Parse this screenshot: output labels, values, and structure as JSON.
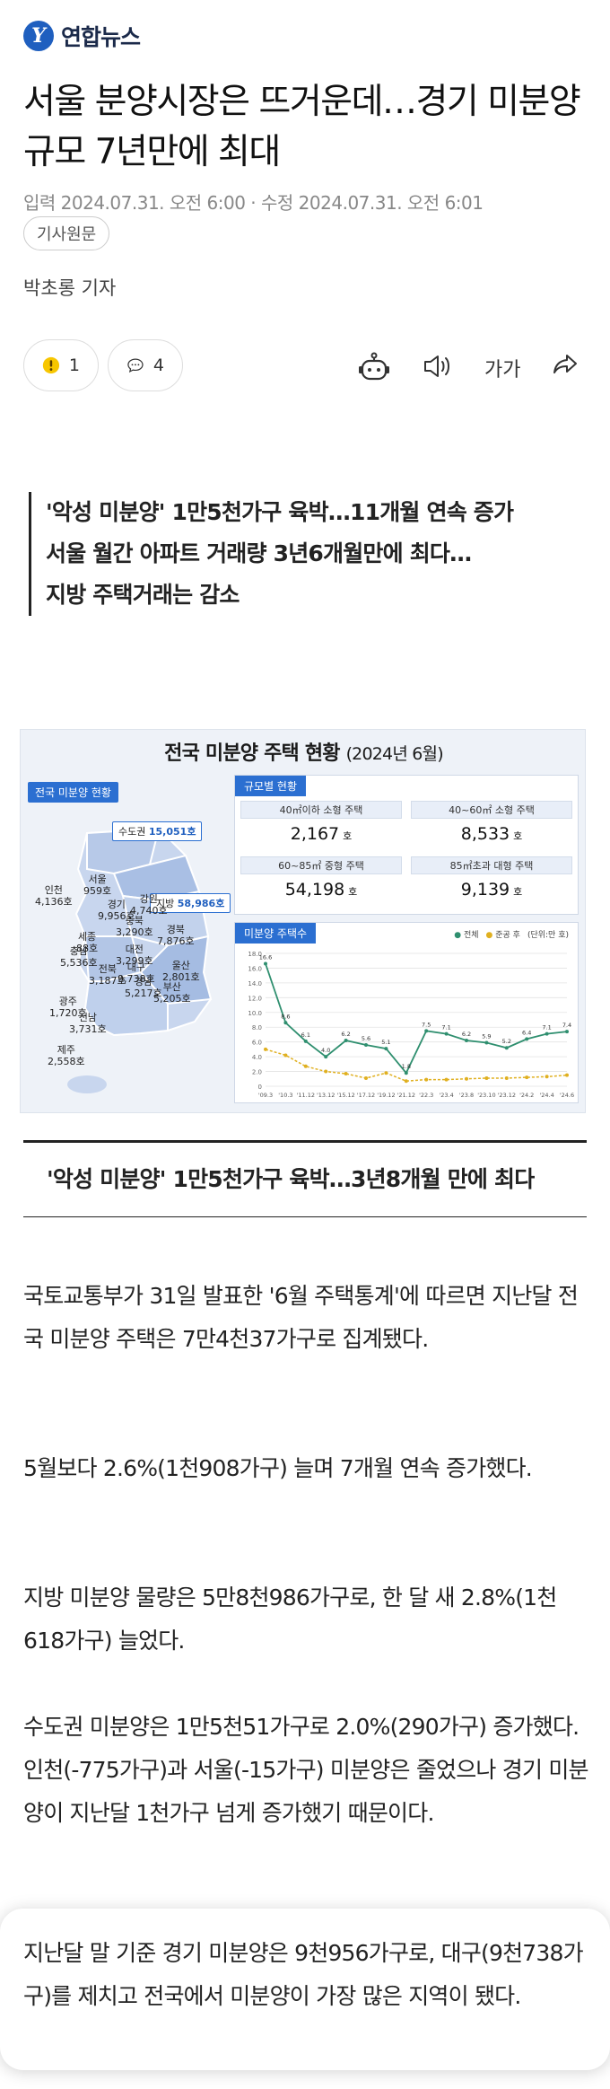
{
  "header": {
    "logo_mark": "Y",
    "logo_text": "연합뉴스"
  },
  "article": {
    "headline": "서울 분양시장은 뜨거운데…경기 미분양 규모 7년만에 최대",
    "dates": "입력 2024.07.31. 오전 6:00 · 수정 2024.07.31. 오전 6:01",
    "source_button": "기사원문",
    "reporter": "박초롱 기자",
    "like_count": "1",
    "comment_count": "4",
    "font_button": "가가",
    "subheads": [
      "'악성 미분양' 1만5천가구 육박…11개월 연속 증가",
      "서울 월간 아파트 거래량 3년6개월만에 최다…",
      "지방 주택거래는 감소"
    ],
    "section_heading": "'악성 미분양' 1만5천가구 육박…3년8개월 만에 최다",
    "paragraphs": [
      "국토교통부가 31일 발표한 '6월 주택통계'에 따르면 지난달 전국 미분양 주택은 7만4천37가구로 집계됐다.",
      "5월보다 2.6%(1천908가구) 늘며 7개월 연속 증가했다.",
      "지방 미분양 물량은 5만8천986가구로, 한 달 새 2.8%(1천618가구) 늘었다.",
      "수도권 미분양은 1만5천51가구로 2.0%(290가구) 증가했다. 인천(-775가구)과 서울(-15가구) 미분양은 줄었으나 경기 미분양이 지난달 1천가구 넘게 증가했기 때문이다."
    ],
    "bubble_text": "지난달 말 기준 경기 미분양은 9천956가구로, 대구(9천738가구)를 제치고 전국에서 미분양이 가장 많은 지역이 됐다."
  },
  "infographic": {
    "title": "전국 미분양 주택 현황",
    "title_period": "(2024년 6월)",
    "map_label": "전국 미분양 현황",
    "metro_label": "수도권",
    "metro_value": "15,051호",
    "local_label": "지방",
    "local_value": "58,986호",
    "regions": [
      {
        "name": "서울",
        "value": "959호"
      },
      {
        "name": "인천",
        "value": "4,136호"
      },
      {
        "name": "강원",
        "value": "4,740호"
      },
      {
        "name": "경기",
        "value": "9,956호"
      },
      {
        "name": "충북",
        "value": "3,290호"
      },
      {
        "name": "경북",
        "value": "7,876호"
      },
      {
        "name": "세종",
        "value": "88호"
      },
      {
        "name": "충남",
        "value": "5,536호"
      },
      {
        "name": "대전",
        "value": "3,299호"
      },
      {
        "name": "대구",
        "value": "9,738호"
      },
      {
        "name": "전북",
        "value": "3,187호"
      },
      {
        "name": "울산",
        "value": "2,801호"
      },
      {
        "name": "경남",
        "value": "5,217호"
      },
      {
        "name": "부산",
        "value": "5,205호"
      },
      {
        "name": "광주",
        "value": "1,720호"
      },
      {
        "name": "전남",
        "value": "3,731호"
      },
      {
        "name": "제주",
        "value": "2,558호"
      }
    ],
    "size_panel_label": "규모별 현황",
    "size_cells": [
      {
        "label": "40㎡이하 소형 주택",
        "value": "2,167",
        "unit": "호"
      },
      {
        "label": "40~60㎡ 소형 주택",
        "value": "8,533",
        "unit": "호"
      },
      {
        "label": "60~85㎡ 중형 주택",
        "value": "54,198",
        "unit": "호"
      },
      {
        "label": "85㎡초과 대형 주택",
        "value": "9,139",
        "unit": "호"
      }
    ],
    "chart_panel_label": "미분양 주택수",
    "legend": {
      "total": "전체",
      "after": "준공 후",
      "unit": "(단위:만 호)"
    },
    "colors": {
      "accent": "#2b6fd1",
      "total_line": "#2f8f6f",
      "after_line": "#e0b020"
    }
  },
  "chart_data": {
    "type": "line",
    "x": [
      "'09.3",
      "'10.3",
      "'11.12",
      "'13.12",
      "'15.12",
      "'17.12",
      "'19.12",
      "'21.12",
      "'22.3",
      "'23.4",
      "'23.8",
      "'23.10",
      "'23.12",
      "'24.2",
      "'24.4",
      "'24.6"
    ],
    "series": [
      {
        "name": "전체",
        "values": [
          16.6,
          8.6,
          6.1,
          4.0,
          6.2,
          5.6,
          5.1,
          1.8,
          7.5,
          7.1,
          6.2,
          5.9,
          5.2,
          6.4,
          7.1,
          7.4
        ]
      },
      {
        "name": "준공 후",
        "values": [
          5.0,
          4.2,
          2.7,
          2.0,
          1.7,
          1.1,
          1.8,
          0.7,
          0.9,
          0.9,
          1.0,
          1.1,
          1.1,
          1.2,
          1.3,
          1.5
        ]
      }
    ],
    "ylim": [
      0,
      18
    ],
    "yticks": [
      "0",
      "2.0",
      "4.0",
      "6.0",
      "8.0",
      "10.0",
      "12.0",
      "14.0",
      "16.0",
      "18.0"
    ],
    "data_labels": [
      "16.6",
      "8.6",
      "6.1",
      "4.0",
      "6.2",
      "5.6",
      "5.1",
      "1.8",
      "7.5",
      "7.1",
      "6.2",
      "5.9",
      "5.2",
      "6.4",
      "7.1",
      "7.4"
    ],
    "grid": true,
    "legend_position": "top-right"
  }
}
